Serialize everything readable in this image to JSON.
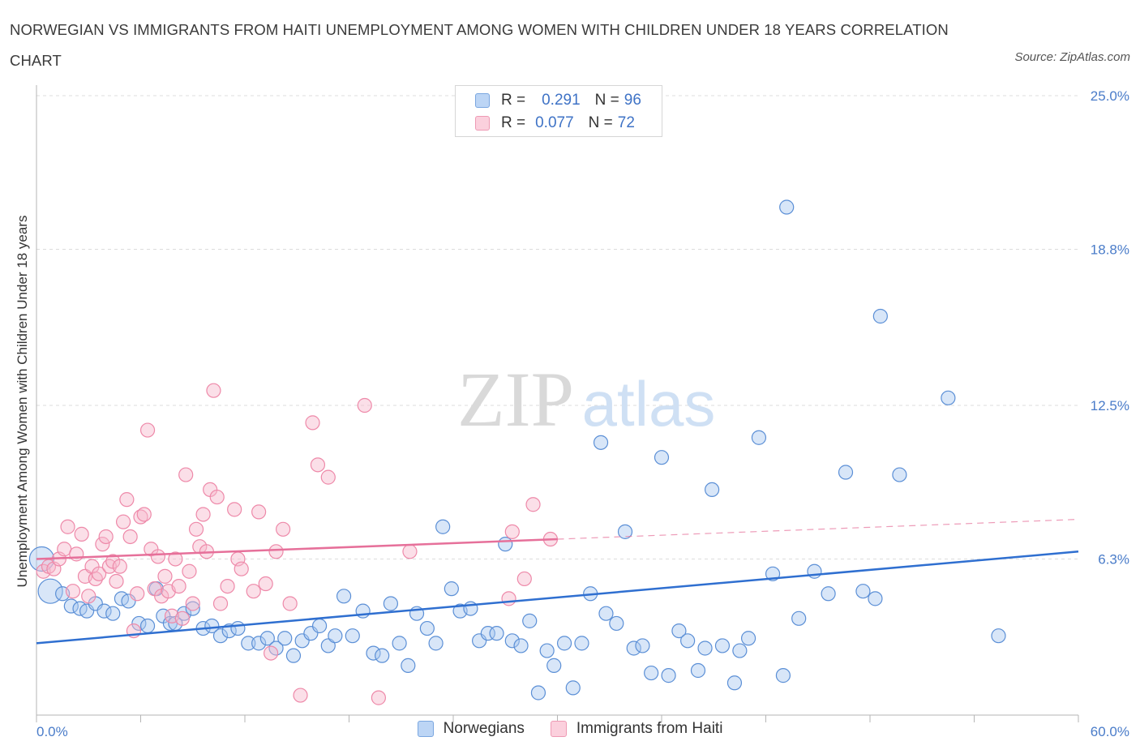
{
  "title": "NORWEGIAN VS IMMIGRANTS FROM HAITI UNEMPLOYMENT AMONG WOMEN WITH CHILDREN UNDER 18 YEARS CORRELATION CHART",
  "source": "Source: ZipAtlas.com",
  "watermark": {
    "zip": "ZIP",
    "atlas": "atlas"
  },
  "legend": {
    "rows": [
      {
        "r_label": "R =",
        "r_value": "0.291",
        "n_label": "N =",
        "n_value": "96",
        "color": "#a8c8f0"
      },
      {
        "r_label": "R =",
        "r_value": "0.077",
        "n_label": "N =",
        "n_value": "72",
        "color": "#f6b8cb"
      }
    ]
  },
  "bottom_legend": [
    {
      "label": "Norwegians",
      "color": "#a8c8f0"
    },
    {
      "label": "Immigrants from Haiti",
      "color": "#f6b8cb"
    }
  ],
  "chart_data": {
    "type": "scatter",
    "ylabel": "Unemployment Among Women with Children Under 18 years",
    "xlim": [
      0,
      60
    ],
    "ylim": [
      0,
      25
    ],
    "x_tick_labels": [
      "0.0%",
      "60.0%"
    ],
    "y_ticks": [
      {
        "value": 6.3,
        "label": "6.3%"
      },
      {
        "value": 12.5,
        "label": "12.5%"
      },
      {
        "value": 18.8,
        "label": "18.8%"
      },
      {
        "value": 25.0,
        "label": "25.0%"
      }
    ],
    "grid": "horizontal-dashed",
    "series": [
      {
        "name": "Norwegians",
        "color": "#5b8fd6",
        "fill": "#a8c8f0",
        "trend": {
          "x": [
            0,
            60
          ],
          "y": [
            2.9,
            6.6
          ]
        },
        "points": [
          [
            0.3,
            6.3
          ],
          [
            0.8,
            5.0
          ],
          [
            1.5,
            4.9
          ],
          [
            2.0,
            4.4
          ],
          [
            2.5,
            4.3
          ],
          [
            2.9,
            4.2
          ],
          [
            3.4,
            4.5
          ],
          [
            3.9,
            4.2
          ],
          [
            4.4,
            4.1
          ],
          [
            4.9,
            4.7
          ],
          [
            5.3,
            4.6
          ],
          [
            5.9,
            3.7
          ],
          [
            6.4,
            3.6
          ],
          [
            6.9,
            5.1
          ],
          [
            7.3,
            4.0
          ],
          [
            7.7,
            3.7
          ],
          [
            8.0,
            3.7
          ],
          [
            8.5,
            4.1
          ],
          [
            9.0,
            4.3
          ],
          [
            9.6,
            3.5
          ],
          [
            10.1,
            3.6
          ],
          [
            10.6,
            3.2
          ],
          [
            11.1,
            3.4
          ],
          [
            11.6,
            3.5
          ],
          [
            12.2,
            2.9
          ],
          [
            12.8,
            2.9
          ],
          [
            13.3,
            3.1
          ],
          [
            13.8,
            2.7
          ],
          [
            14.3,
            3.1
          ],
          [
            14.8,
            2.4
          ],
          [
            15.3,
            3.0
          ],
          [
            15.8,
            3.3
          ],
          [
            16.3,
            3.6
          ],
          [
            16.8,
            2.8
          ],
          [
            17.2,
            3.2
          ],
          [
            17.7,
            4.8
          ],
          [
            18.2,
            3.2
          ],
          [
            18.8,
            4.2
          ],
          [
            19.4,
            2.5
          ],
          [
            19.9,
            2.4
          ],
          [
            20.4,
            4.5
          ],
          [
            20.9,
            2.9
          ],
          [
            21.4,
            2.0
          ],
          [
            21.9,
            4.1
          ],
          [
            22.5,
            3.5
          ],
          [
            23.0,
            2.9
          ],
          [
            23.4,
            7.6
          ],
          [
            23.9,
            5.1
          ],
          [
            24.4,
            4.2
          ],
          [
            25.0,
            4.3
          ],
          [
            25.5,
            3.0
          ],
          [
            26.0,
            3.3
          ],
          [
            26.5,
            3.3
          ],
          [
            27.0,
            6.9
          ],
          [
            27.4,
            3.0
          ],
          [
            27.9,
            2.8
          ],
          [
            28.4,
            3.8
          ],
          [
            28.9,
            0.9
          ],
          [
            29.4,
            2.6
          ],
          [
            29.8,
            2.0
          ],
          [
            30.4,
            2.9
          ],
          [
            30.9,
            1.1
          ],
          [
            31.4,
            2.9
          ],
          [
            31.9,
            4.9
          ],
          [
            32.5,
            11.0
          ],
          [
            32.8,
            4.1
          ],
          [
            33.4,
            3.7
          ],
          [
            33.9,
            7.4
          ],
          [
            34.4,
            2.7
          ],
          [
            34.9,
            2.8
          ],
          [
            35.4,
            1.7
          ],
          [
            36.0,
            10.4
          ],
          [
            36.4,
            1.6
          ],
          [
            37.0,
            3.4
          ],
          [
            37.5,
            3.0
          ],
          [
            38.1,
            1.8
          ],
          [
            38.5,
            2.7
          ],
          [
            38.9,
            9.1
          ],
          [
            39.5,
            2.8
          ],
          [
            40.2,
            1.3
          ],
          [
            40.5,
            2.6
          ],
          [
            41.0,
            3.1
          ],
          [
            41.6,
            11.2
          ],
          [
            42.4,
            5.7
          ],
          [
            43.0,
            1.6
          ],
          [
            43.2,
            20.5
          ],
          [
            43.9,
            3.9
          ],
          [
            44.8,
            5.8
          ],
          [
            45.6,
            4.9
          ],
          [
            46.6,
            9.8
          ],
          [
            47.6,
            5.0
          ],
          [
            48.3,
            4.7
          ],
          [
            48.6,
            16.1
          ],
          [
            49.7,
            9.7
          ],
          [
            52.5,
            12.8
          ],
          [
            55.4,
            3.2
          ]
        ]
      },
      {
        "name": "Immigrants from Haiti",
        "color": "#ee89a9",
        "fill": "#f6b8cb",
        "trend": {
          "x": [
            0,
            30
          ],
          "y": [
            6.3,
            7.1
          ]
        },
        "trend_extension": {
          "x": [
            30,
            60
          ],
          "y": [
            7.1,
            7.9
          ]
        },
        "points": [
          [
            0.4,
            5.8
          ],
          [
            0.7,
            6.0
          ],
          [
            1.0,
            5.9
          ],
          [
            1.3,
            6.3
          ],
          [
            1.6,
            6.7
          ],
          [
            1.8,
            7.6
          ],
          [
            2.1,
            5.0
          ],
          [
            2.3,
            6.5
          ],
          [
            2.6,
            7.3
          ],
          [
            2.8,
            5.6
          ],
          [
            3.0,
            4.8
          ],
          [
            3.2,
            6.0
          ],
          [
            3.4,
            5.5
          ],
          [
            3.6,
            5.7
          ],
          [
            3.8,
            6.9
          ],
          [
            4.0,
            7.2
          ],
          [
            4.2,
            6.0
          ],
          [
            4.4,
            6.2
          ],
          [
            4.6,
            5.4
          ],
          [
            4.8,
            6.0
          ],
          [
            5.0,
            7.8
          ],
          [
            5.2,
            8.7
          ],
          [
            5.4,
            7.2
          ],
          [
            5.6,
            3.4
          ],
          [
            5.8,
            4.9
          ],
          [
            6.0,
            8.0
          ],
          [
            6.2,
            8.1
          ],
          [
            6.4,
            11.5
          ],
          [
            6.6,
            6.7
          ],
          [
            6.8,
            5.1
          ],
          [
            7.0,
            6.4
          ],
          [
            7.2,
            4.8
          ],
          [
            7.4,
            5.6
          ],
          [
            7.6,
            5.0
          ],
          [
            7.8,
            4.0
          ],
          [
            8.0,
            6.3
          ],
          [
            8.2,
            5.2
          ],
          [
            8.4,
            3.9
          ],
          [
            8.6,
            9.7
          ],
          [
            8.8,
            5.8
          ],
          [
            9.0,
            4.5
          ],
          [
            9.2,
            7.5
          ],
          [
            9.4,
            6.8
          ],
          [
            9.6,
            8.1
          ],
          [
            9.8,
            6.6
          ],
          [
            10.0,
            9.1
          ],
          [
            10.2,
            13.1
          ],
          [
            10.4,
            8.8
          ],
          [
            10.6,
            4.5
          ],
          [
            11.0,
            5.2
          ],
          [
            11.4,
            8.3
          ],
          [
            11.6,
            6.3
          ],
          [
            11.8,
            5.9
          ],
          [
            12.5,
            5.0
          ],
          [
            12.8,
            8.2
          ],
          [
            13.2,
            5.3
          ],
          [
            13.5,
            2.5
          ],
          [
            13.8,
            6.6
          ],
          [
            14.2,
            7.5
          ],
          [
            14.6,
            4.5
          ],
          [
            15.2,
            0.8
          ],
          [
            15.9,
            11.8
          ],
          [
            16.2,
            10.1
          ],
          [
            16.8,
            9.6
          ],
          [
            18.9,
            12.5
          ],
          [
            19.7,
            0.7
          ],
          [
            21.5,
            6.6
          ],
          [
            27.2,
            4.7
          ],
          [
            27.4,
            7.4
          ],
          [
            28.1,
            5.5
          ],
          [
            28.6,
            8.5
          ],
          [
            29.6,
            7.1
          ]
        ]
      }
    ]
  }
}
